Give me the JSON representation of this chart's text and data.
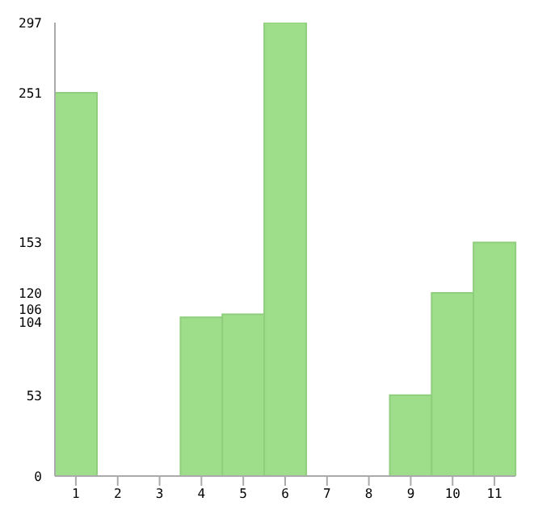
{
  "chart_data": {
    "type": "bar",
    "categories": [
      "1",
      "2",
      "3",
      "4",
      "5",
      "6",
      "7",
      "8",
      "9",
      "10",
      "11"
    ],
    "values": [
      251,
      0,
      0,
      104,
      106,
      297,
      0,
      0,
      53,
      120,
      153
    ],
    "color": "#9edd8a",
    "ylim": [
      0,
      297
    ],
    "yticks": [
      0,
      53,
      104,
      106,
      120,
      153,
      251,
      297
    ],
    "grid": false
  }
}
